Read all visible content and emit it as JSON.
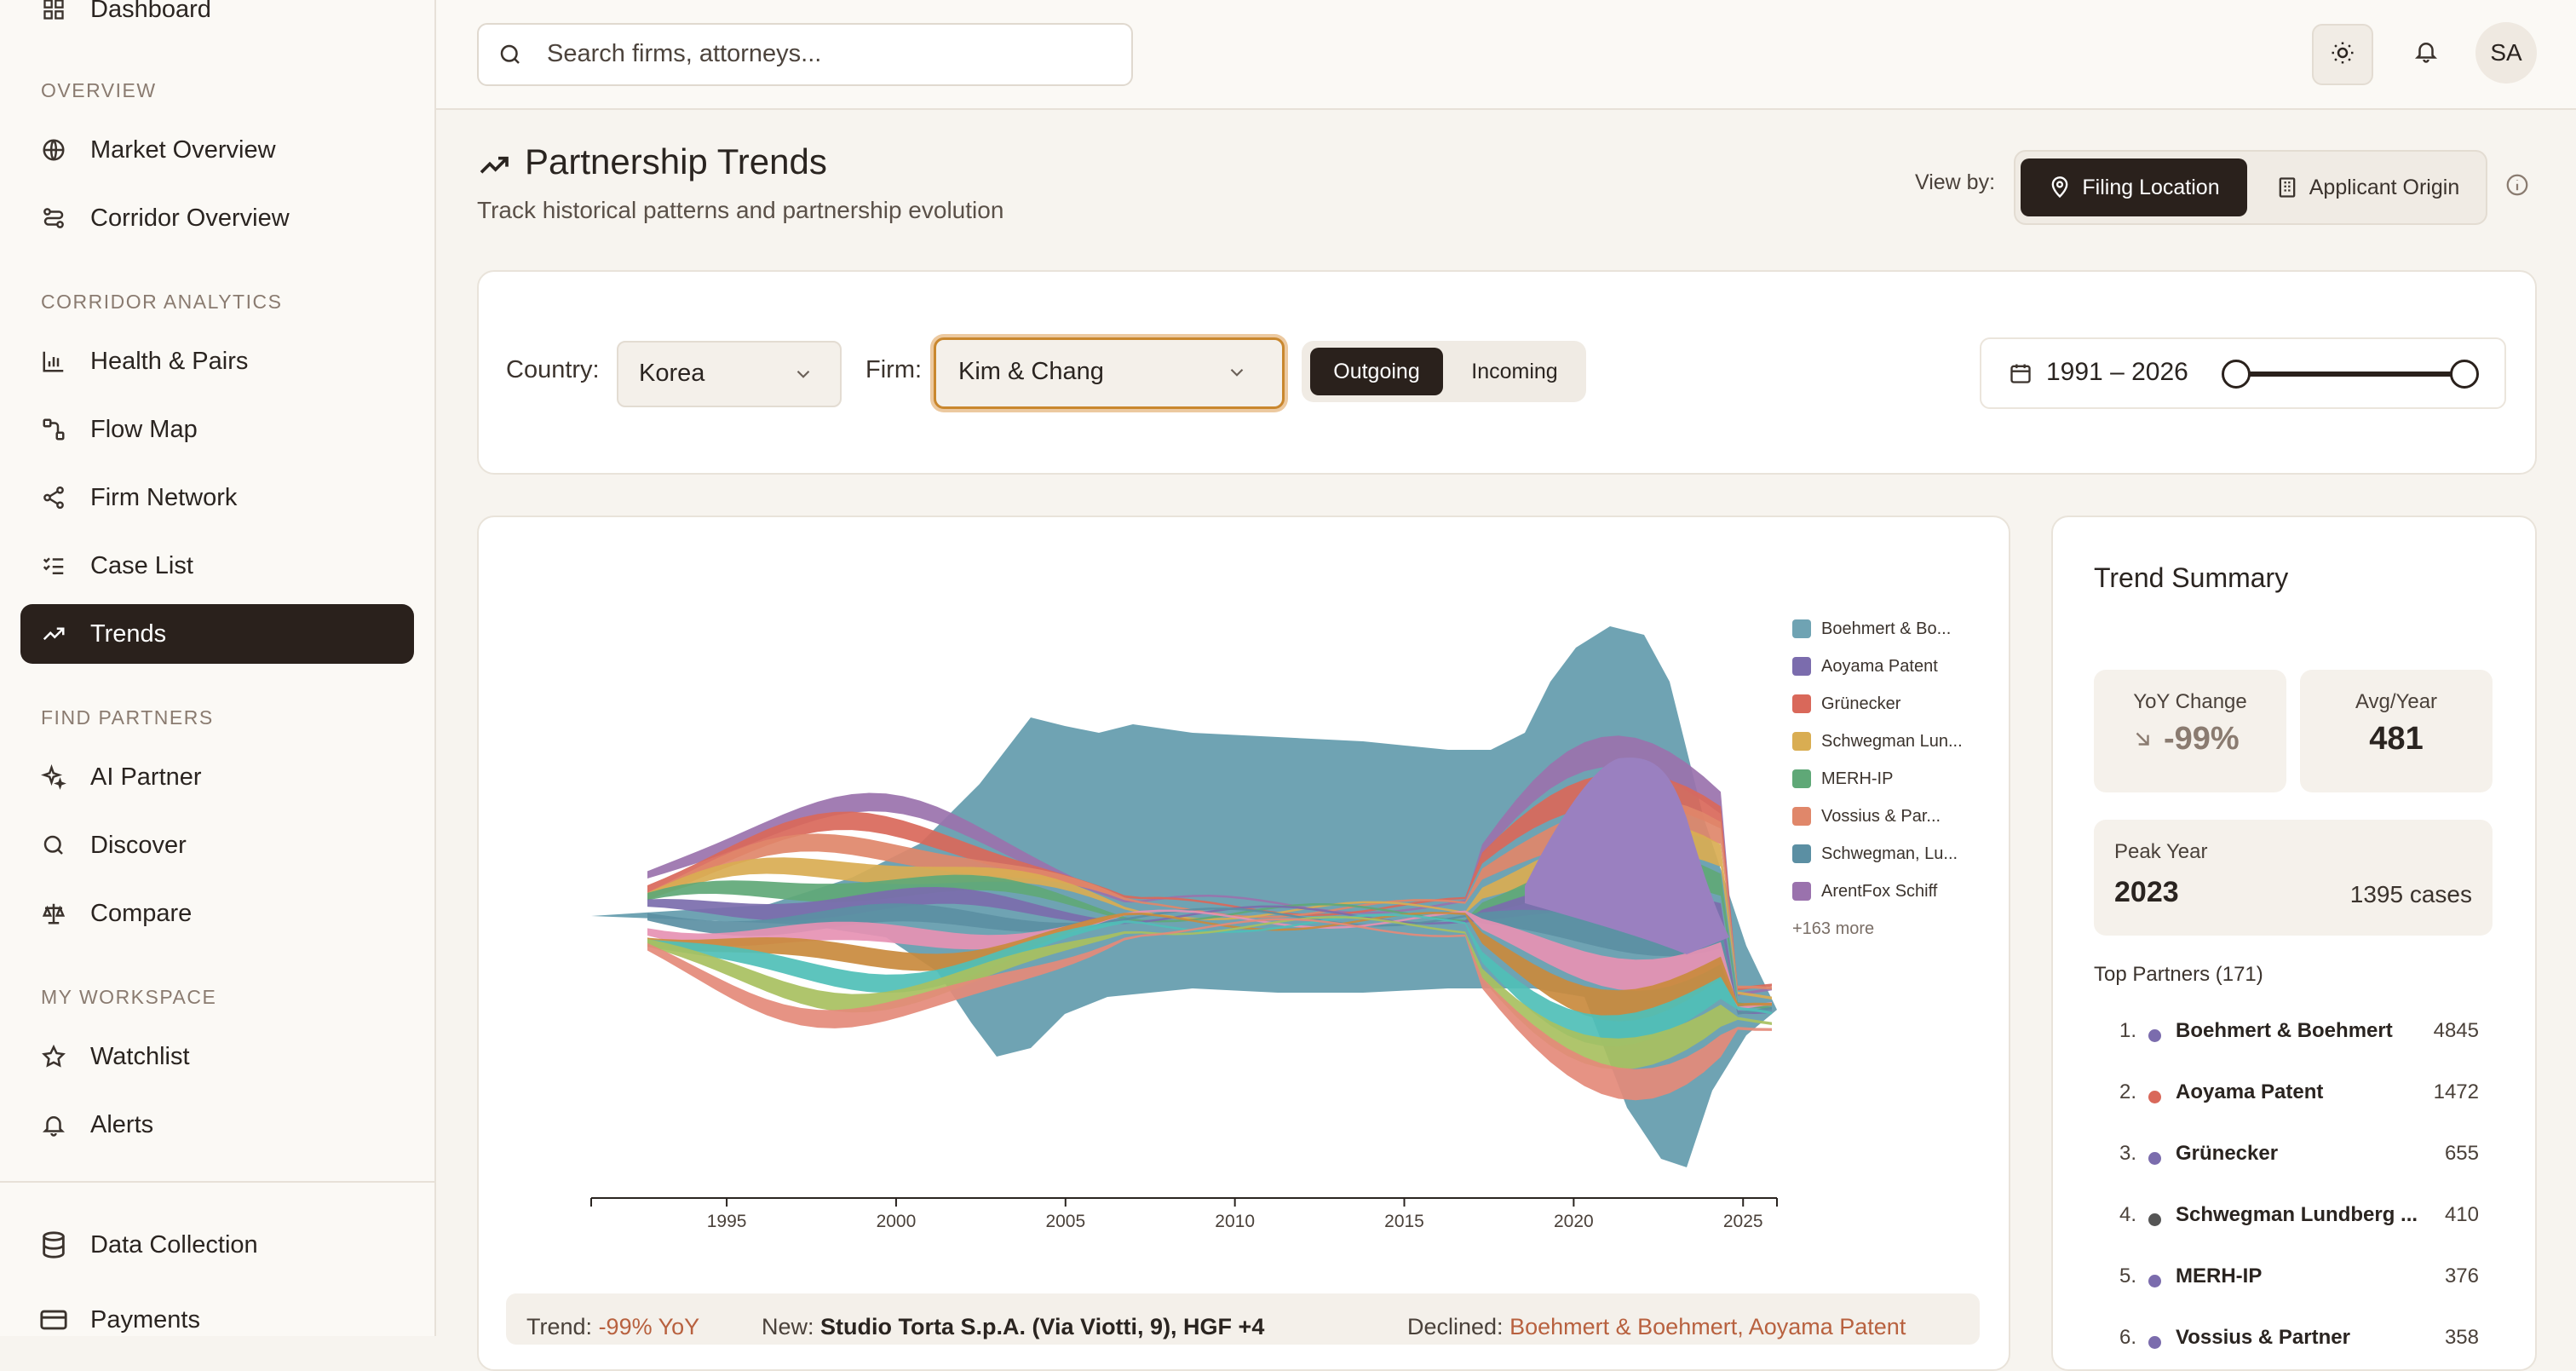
{
  "sidebar": {
    "top_item": "Dashboard",
    "sections": [
      {
        "title": "OVERVIEW",
        "items": [
          "Market Overview",
          "Corridor Overview"
        ]
      },
      {
        "title": "CORRIDOR ANALYTICS",
        "items": [
          "Health & Pairs",
          "Flow Map",
          "Firm Network",
          "Case List",
          "Trends"
        ]
      },
      {
        "title": "FIND PARTNERS",
        "items": [
          "AI Partner",
          "Discover",
          "Compare"
        ]
      },
      {
        "title": "MY WORKSPACE",
        "items": [
          "Watchlist",
          "Alerts"
        ]
      }
    ],
    "active": "Trends",
    "footer_items": [
      "Data Collection",
      "Payments"
    ]
  },
  "topbar": {
    "search_placeholder": "Search firms, attorneys...",
    "avatar_initials": "SA"
  },
  "header": {
    "title": "Partnership Trends",
    "subtitle": "Track historical patterns and partnership evolution",
    "view_by_label": "View by:",
    "view_options": [
      "Filing Location",
      "Applicant Origin"
    ],
    "view_selected": "Filing Location"
  },
  "filters": {
    "country_label": "Country:",
    "country_value": "Korea",
    "firm_label": "Firm:",
    "firm_value": "Kim & Chang",
    "direction_options": [
      "Outgoing",
      "Incoming"
    ],
    "direction_selected": "Outgoing",
    "year_range": "1991 – 2026",
    "range_start": 1991,
    "range_end": 2026
  },
  "chart_data": {
    "type": "area",
    "subtype": "streamgraph",
    "x_ticks": [
      1995,
      2000,
      2005,
      2010,
      2015,
      2020,
      2025
    ],
    "xlim": [
      1991,
      2026
    ],
    "legend": [
      {
        "name": "Boehmert & Bo...",
        "color": "#6fa3b3"
      },
      {
        "name": "Aoyama Patent",
        "color": "#7b6cad"
      },
      {
        "name": "Grünecker",
        "color": "#d9685a"
      },
      {
        "name": "Schwegman Lun...",
        "color": "#d9ad52"
      },
      {
        "name": "MERH-IP",
        "color": "#5fa877"
      },
      {
        "name": "Vossius & Par...",
        "color": "#e0876a"
      },
      {
        "name": "Schwegman, Lu...",
        "color": "#5b8fa3"
      },
      {
        "name": "ArentFox Schiff",
        "color": "#9a72ad"
      }
    ],
    "legend_more": "+163 more",
    "legend_position": "top-right"
  },
  "footer_strip": {
    "trend_label": "Trend:",
    "trend_value": "-99% YoY",
    "new_label": "New:",
    "new_value": "Studio Torta S.p.A. (Via Viotti, 9), HGF +4",
    "declined_label": "Declined:",
    "declined_value": "Boehmert & Boehmert, Aoyama Patent"
  },
  "summary": {
    "title": "Trend Summary",
    "yoy_label": "YoY Change",
    "yoy_value": "-99%",
    "avg_label": "Avg/Year",
    "avg_value": "481",
    "peak_label": "Peak Year",
    "peak_year": "2023",
    "peak_cases": "1395 cases",
    "top_partners_label": "Top Partners (171)",
    "partners": [
      {
        "rank": "1.",
        "name": "Boehmert & Boehmert",
        "count": "4845",
        "color": "#7b6cad"
      },
      {
        "rank": "2.",
        "name": "Aoyama Patent",
        "count": "1472",
        "color": "#d9685a"
      },
      {
        "rank": "3.",
        "name": "Grünecker",
        "count": "655",
        "color": "#7b6cad"
      },
      {
        "rank": "4.",
        "name": "Schwegman Lundberg ...",
        "count": "410",
        "color": "#555555"
      },
      {
        "rank": "5.",
        "name": "MERH-IP",
        "count": "376",
        "color": "#7b6cad"
      },
      {
        "rank": "6.",
        "name": "Vossius & Partner",
        "count": "358",
        "color": "#7b6cad"
      }
    ]
  }
}
